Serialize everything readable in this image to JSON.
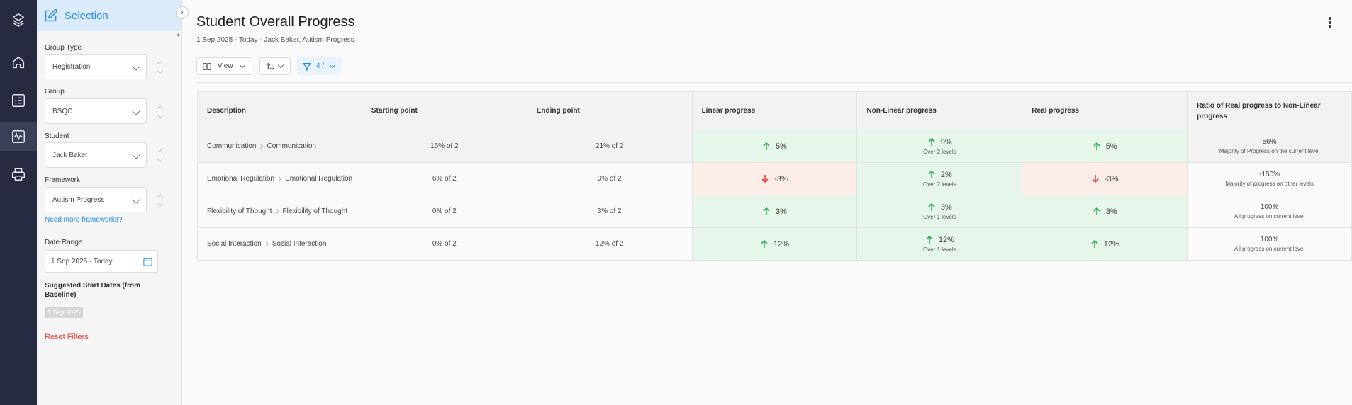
{
  "nav": {
    "items": [
      {
        "icon": "logo-icon"
      },
      {
        "icon": "home-icon"
      },
      {
        "icon": "checklist-icon"
      },
      {
        "icon": "activity-chart-icon",
        "active": true
      },
      {
        "icon": "print-icon"
      }
    ]
  },
  "panel": {
    "title": "Selection",
    "group_type": {
      "label": "Group Type",
      "value": "Registration"
    },
    "group": {
      "label": "Group",
      "value": "BSQC"
    },
    "student": {
      "label": "Student",
      "value": "Jack Baker"
    },
    "framework": {
      "label": "Framework",
      "value": "Autism Progress"
    },
    "more_frameworks_link": "Need more frameworks?",
    "date_range": {
      "label": "Date Range",
      "value": "1 Sep 2025 - Today"
    },
    "suggested_label": "Suggested Start Dates (from Baseline)",
    "suggested_chip": "1 Sep 2025",
    "reset_label": "Reset Filters"
  },
  "header": {
    "title": "Student Overall Progress",
    "subtitle": "1 Sep 2025 - Today - Jack Baker, Autism Progress"
  },
  "toolbar": {
    "view_label": "View",
    "filter_label": "4 /"
  },
  "table": {
    "columns": [
      "Description",
      "Starting point",
      "Ending point",
      "Linear progress",
      "Non-Linear progress",
      "Real progress",
      "Ratio of Real progress to Non-Linear progress"
    ],
    "rows": [
      {
        "desc_a": "Communication",
        "desc_b": "Communication",
        "start": "16% of 2",
        "end": "21% of 2",
        "linear": {
          "value": "5%",
          "dir": "up"
        },
        "nonlinear": {
          "value": "9%",
          "dir": "up",
          "sub": "Over 2 levels"
        },
        "real": {
          "value": "5%",
          "dir": "up"
        },
        "ratio": {
          "value": "56%",
          "sub": "Majority of Progress on the current level"
        }
      },
      {
        "desc_a": "Emotional Regulation",
        "desc_b": "Emotional Regulation",
        "start": "6% of 2",
        "end": "3% of 2",
        "linear": {
          "value": "-3%",
          "dir": "down"
        },
        "nonlinear": {
          "value": "2%",
          "dir": "up",
          "sub": "Over 2 levels"
        },
        "real": {
          "value": "-3%",
          "dir": "down"
        },
        "ratio": {
          "value": "-150%",
          "sub": "Majority of progress on other levels"
        }
      },
      {
        "desc_a": "Flexibility of Thought",
        "desc_b": "Flexibility of Thought",
        "start": "0% of 2",
        "end": "3% of 2",
        "linear": {
          "value": "3%",
          "dir": "up"
        },
        "nonlinear": {
          "value": "3%",
          "dir": "up",
          "sub": "Over 1 levels"
        },
        "real": {
          "value": "3%",
          "dir": "up"
        },
        "ratio": {
          "value": "100%",
          "sub": "All progress on current level"
        }
      },
      {
        "desc_a": "Social Interaction",
        "desc_b": "Social Interaction",
        "start": "0% of 2",
        "end": "12% of 2",
        "linear": {
          "value": "12%",
          "dir": "up"
        },
        "nonlinear": {
          "value": "12%",
          "dir": "up",
          "sub": "Over 1 levels"
        },
        "real": {
          "value": "12%",
          "dir": "up"
        },
        "ratio": {
          "value": "100%",
          "sub": "All progress on current level"
        }
      }
    ]
  },
  "colors": {
    "positive_bg": "#e6f6ea",
    "negative_bg": "#fdede8",
    "up_arrow": "#2fae58",
    "down_arrow": "#e53935",
    "accent": "#1e88e5"
  }
}
